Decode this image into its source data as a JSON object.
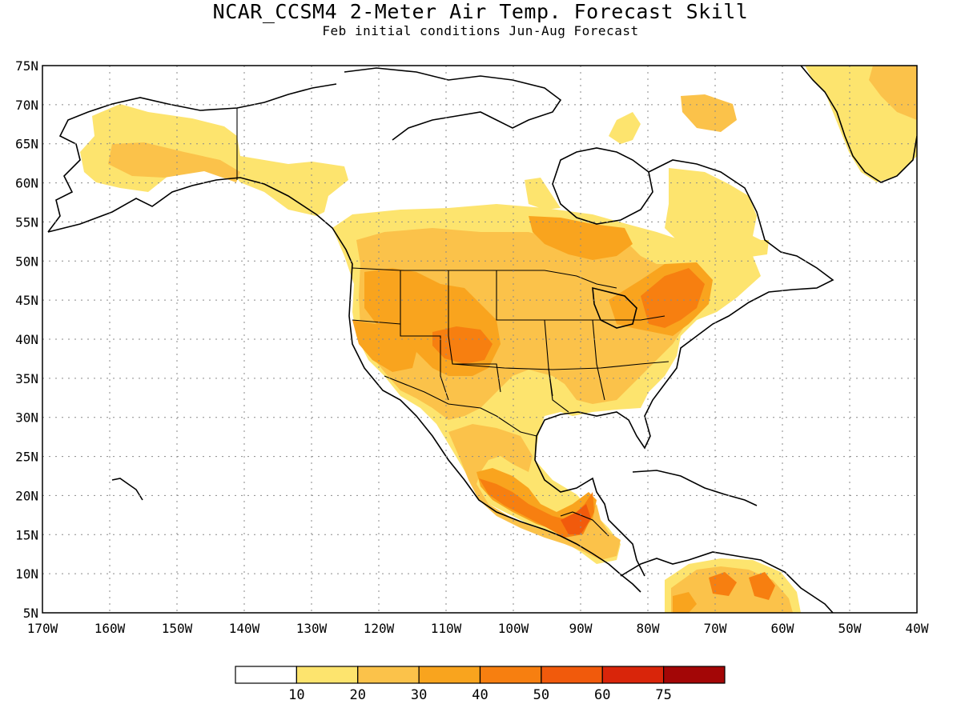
{
  "title": "NCAR_CCSM4 2-Meter Air Temp. Forecast Skill",
  "subtitle": "Feb initial conditions  Jun-Aug Forecast",
  "map": {
    "lon_range": [
      -170,
      -40
    ],
    "lat_range": [
      5,
      75
    ],
    "lat_ticks": [
      "75N",
      "70N",
      "65N",
      "60N",
      "55N",
      "50N",
      "45N",
      "40N",
      "35N",
      "30N",
      "25N",
      "20N",
      "15N",
      "10N",
      "5N"
    ],
    "lon_ticks": [
      "170W",
      "160W",
      "150W",
      "140W",
      "130W",
      "120W",
      "110W",
      "100W",
      "90W",
      "80W",
      "70W",
      "60W",
      "50W",
      "40W"
    ],
    "gridlines": "dotted"
  },
  "colorbar": {
    "labels": [
      "10",
      "20",
      "30",
      "40",
      "50",
      "60",
      "75"
    ],
    "colors": [
      "#ffffff",
      "#fde46e",
      "#fbc24a",
      "#f9a41e",
      "#f77f10",
      "#f15a0c",
      "#d9250a",
      "#a30606"
    ]
  },
  "skill_regions": [
    {
      "region": "Alaska",
      "level": "20-30"
    },
    {
      "region": "Western US",
      "level": "30-50"
    },
    {
      "region": "Four Corners",
      "level": "40-50"
    },
    {
      "region": "Great Plains",
      "level": "30-40"
    },
    {
      "region": "Great Lakes / Northeast",
      "level": "40-60"
    },
    {
      "region": "Quebec / Labrador",
      "level": "20-30"
    },
    {
      "region": "Mexico",
      "level": "30-50"
    },
    {
      "region": "Southern Mexico / Central America",
      "level": "50-75"
    },
    {
      "region": "Greenland",
      "level": "20-30"
    },
    {
      "region": "Northern South America",
      "level": "30-60"
    }
  ]
}
